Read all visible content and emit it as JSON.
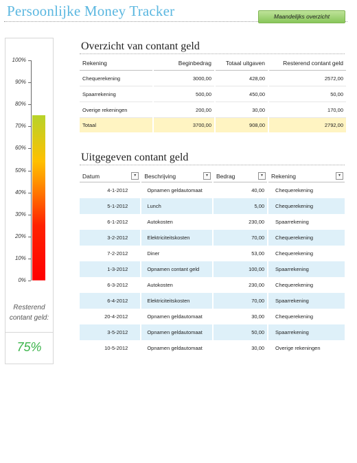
{
  "header": {
    "title": "Persoonlijke Money Tracker",
    "monthly_button": "Maandelijks overzicht"
  },
  "gauge": {
    "axis_labels": [
      "100%",
      "90%",
      "80%",
      "70%",
      "60%",
      "50%",
      "40%",
      "30%",
      "20%",
      "10%",
      "0%"
    ],
    "fill_fraction": 0.75,
    "remaining_label_line1": "Resterend",
    "remaining_label_line2": "contant geld:",
    "remaining_value": "75%"
  },
  "overview": {
    "title": "Overzicht van contant geld",
    "columns": [
      "Rekening",
      "Beginbedrag",
      "Totaal uitgaven",
      "Resterend contant geld"
    ],
    "rows": [
      [
        "Chequerekening",
        "3000,00",
        "428,00",
        "2572,00"
      ],
      [
        "Spaarrekening",
        "500,00",
        "450,00",
        "50,00"
      ],
      [
        "Overige rekeningen",
        "200,00",
        "30,00",
        "170,00"
      ]
    ],
    "total": [
      "Totaal",
      "3700,00",
      "908,00",
      "2792,00"
    ]
  },
  "spending": {
    "title": "Uitgegeven contant geld",
    "columns": [
      "Datum",
      "Beschrijving",
      "Bedrag",
      "Rekening"
    ],
    "rows": [
      [
        "4-1-2012",
        "Opnamen geldautomaat",
        "40,00",
        "Chequerekening"
      ],
      [
        "5-1-2012",
        "Lunch",
        "5,00",
        "Chequerekening"
      ],
      [
        "6-1-2012",
        "Autokosten",
        "230,00",
        "Spaarrekening"
      ],
      [
        "3-2-2012",
        "Elektriciteitskosten",
        "70,00",
        "Chequerekening"
      ],
      [
        "7-2-2012",
        "Diner",
        "53,00",
        "Chequerekening"
      ],
      [
        "1-3-2012",
        "Opnamen contant geld",
        "100,00",
        "Spaarrekening"
      ],
      [
        "6-3-2012",
        "Autokosten",
        "230,00",
        "Chequerekening"
      ],
      [
        "6-4-2012",
        "Elektriciteitskosten",
        "70,00",
        "Spaarrekening"
      ],
      [
        "20-4-2012",
        "Opnamen geldautomaat",
        "30,00",
        "Chequerekening"
      ],
      [
        "3-5-2012",
        "Opnamen geldautomaat",
        "50,00",
        "Spaarrekening"
      ],
      [
        "10-5-2012",
        "Opnamen geldautomaat",
        "30,00",
        "Overige rekeningen"
      ]
    ]
  }
}
